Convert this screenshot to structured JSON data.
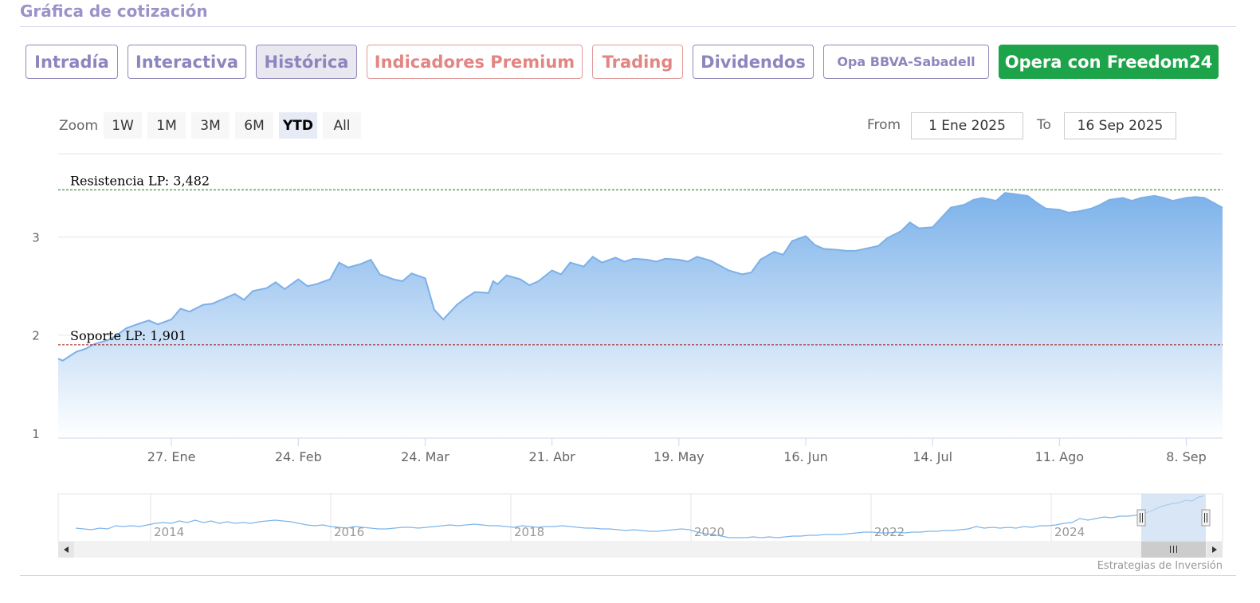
{
  "header": {
    "title": "Gráfica de cotización"
  },
  "tabs": [
    {
      "label": "Intradía"
    },
    {
      "label": "Interactiva"
    },
    {
      "label": "Histórica"
    },
    {
      "label": "Indicadores Premium"
    },
    {
      "label": "Trading"
    },
    {
      "label": "Dividendos"
    },
    {
      "label": "Opa BBVA-Sabadell"
    },
    {
      "label": "Opera con Freedom24"
    }
  ],
  "range_selector": {
    "zoom_label": "Zoom",
    "buttons": [
      "1W",
      "1M",
      "3M",
      "6M",
      "YTD",
      "All"
    ],
    "selected": "YTD",
    "from_label": "From",
    "from_value": "1 Ene 2025",
    "to_label": "To",
    "to_value": "16 Sep 2025"
  },
  "colors": {
    "line": "#7cb0e8",
    "area_top": "#7cb2ea",
    "area_bottom": "#ffffff",
    "resistance": "#1f6b1f",
    "support": "#a01414",
    "navigator_mask": "#c4d8ef",
    "scrollbar": "#f2f2f2"
  },
  "chart_data": {
    "type": "area",
    "title": "",
    "xlabel": "",
    "ylabel": "",
    "ylim": [
      0.95,
      3.85
    ],
    "yticks": [
      1,
      2,
      3
    ],
    "xlim": [
      "2025-01-02",
      "2025-09-16"
    ],
    "xticks": [
      {
        "date": "2025-01-27",
        "label": "27. Ene"
      },
      {
        "date": "2025-02-24",
        "label": "24. Feb"
      },
      {
        "date": "2025-03-24",
        "label": "24. Mar"
      },
      {
        "date": "2025-04-21",
        "label": "21. Abr"
      },
      {
        "date": "2025-05-19",
        "label": "19. May"
      },
      {
        "date": "2025-06-16",
        "label": "16. Jun"
      },
      {
        "date": "2025-07-14",
        "label": "14. Jul"
      },
      {
        "date": "2025-08-11",
        "label": "11. Ago"
      },
      {
        "date": "2025-09-08",
        "label": "8. Sep"
      }
    ],
    "reference_lines": [
      {
        "label": "Resistencia LP: 3,482",
        "value": 3.482,
        "style": "dashed"
      },
      {
        "label": "Soporte LP: 1,901",
        "value": 1.901,
        "style": "dashed"
      }
    ],
    "grid": true,
    "legend": "none",
    "series": [
      {
        "x": [
          "2025-01-02",
          "2025-01-03",
          "2025-01-06",
          "2025-01-08",
          "2025-01-10",
          "2025-01-13",
          "2025-01-15",
          "2025-01-17",
          "2025-01-20",
          "2025-01-22",
          "2025-01-24",
          "2025-01-27",
          "2025-01-29",
          "2025-01-31",
          "2025-02-03",
          "2025-02-05",
          "2025-02-07",
          "2025-02-10",
          "2025-02-12",
          "2025-02-14",
          "2025-02-17",
          "2025-02-19",
          "2025-02-21",
          "2025-02-24",
          "2025-02-26",
          "2025-02-28",
          "2025-03-03",
          "2025-03-05",
          "2025-03-07",
          "2025-03-10",
          "2025-03-12",
          "2025-03-14",
          "2025-03-17",
          "2025-03-19",
          "2025-03-21",
          "2025-03-24",
          "2025-03-26",
          "2025-03-28",
          "2025-03-31",
          "2025-04-02",
          "2025-04-04",
          "2025-04-07",
          "2025-04-08",
          "2025-04-09",
          "2025-04-11",
          "2025-04-14",
          "2025-04-16",
          "2025-04-18",
          "2025-04-21",
          "2025-04-23",
          "2025-04-25",
          "2025-04-28",
          "2025-04-30",
          "2025-05-02",
          "2025-05-05",
          "2025-05-07",
          "2025-05-09",
          "2025-05-12",
          "2025-05-14",
          "2025-05-16",
          "2025-05-19",
          "2025-05-21",
          "2025-05-23",
          "2025-05-26",
          "2025-05-28",
          "2025-05-30",
          "2025-06-02",
          "2025-06-04",
          "2025-06-06",
          "2025-06-09",
          "2025-06-11",
          "2025-06-13",
          "2025-06-16",
          "2025-06-18",
          "2025-06-20",
          "2025-06-23",
          "2025-06-25",
          "2025-06-27",
          "2025-06-30",
          "2025-07-02",
          "2025-07-04",
          "2025-07-07",
          "2025-07-09",
          "2025-07-11",
          "2025-07-14",
          "2025-07-16",
          "2025-07-18",
          "2025-07-21",
          "2025-07-23",
          "2025-07-25",
          "2025-07-28",
          "2025-07-30",
          "2025-08-01",
          "2025-08-04",
          "2025-08-06",
          "2025-08-08",
          "2025-08-11",
          "2025-08-13",
          "2025-08-15",
          "2025-08-18",
          "2025-08-20",
          "2025-08-22",
          "2025-08-25",
          "2025-08-27",
          "2025-08-29",
          "2025-09-01",
          "2025-09-03",
          "2025-09-05",
          "2025-09-08",
          "2025-09-10",
          "2025-09-12",
          "2025-09-16"
        ],
        "values": [
          1.76,
          1.74,
          1.83,
          1.86,
          1.91,
          1.95,
          2.0,
          2.07,
          2.12,
          2.15,
          2.11,
          2.16,
          2.27,
          2.24,
          2.31,
          2.32,
          2.36,
          2.42,
          2.36,
          2.45,
          2.48,
          2.54,
          2.47,
          2.57,
          2.5,
          2.52,
          2.57,
          2.74,
          2.69,
          2.73,
          2.77,
          2.62,
          2.57,
          2.55,
          2.63,
          2.58,
          2.26,
          2.16,
          2.31,
          2.38,
          2.44,
          2.43,
          2.55,
          2.52,
          2.61,
          2.57,
          2.51,
          2.55,
          2.66,
          2.62,
          2.74,
          2.7,
          2.8,
          2.74,
          2.79,
          2.75,
          2.78,
          2.77,
          2.75,
          2.78,
          2.77,
          2.75,
          2.8,
          2.76,
          2.71,
          2.66,
          2.62,
          2.64,
          2.77,
          2.85,
          2.82,
          2.96,
          3.01,
          2.92,
          2.88,
          2.87,
          2.86,
          2.86,
          2.89,
          2.91,
          2.99,
          3.06,
          3.15,
          3.09,
          3.1,
          3.2,
          3.3,
          3.33,
          3.38,
          3.4,
          3.37,
          3.45,
          3.44,
          3.42,
          3.35,
          3.29,
          3.28,
          3.25,
          3.26,
          3.29,
          3.33,
          3.38,
          3.4,
          3.37,
          3.4,
          3.42,
          3.4,
          3.37,
          3.4,
          3.41,
          3.4,
          3.3
        ]
      }
    ],
    "navigator": {
      "xticks": [
        "2014",
        "2016",
        "2018",
        "2020",
        "2022",
        "2024"
      ]
    }
  },
  "credits": "Estrategias de Inversión"
}
